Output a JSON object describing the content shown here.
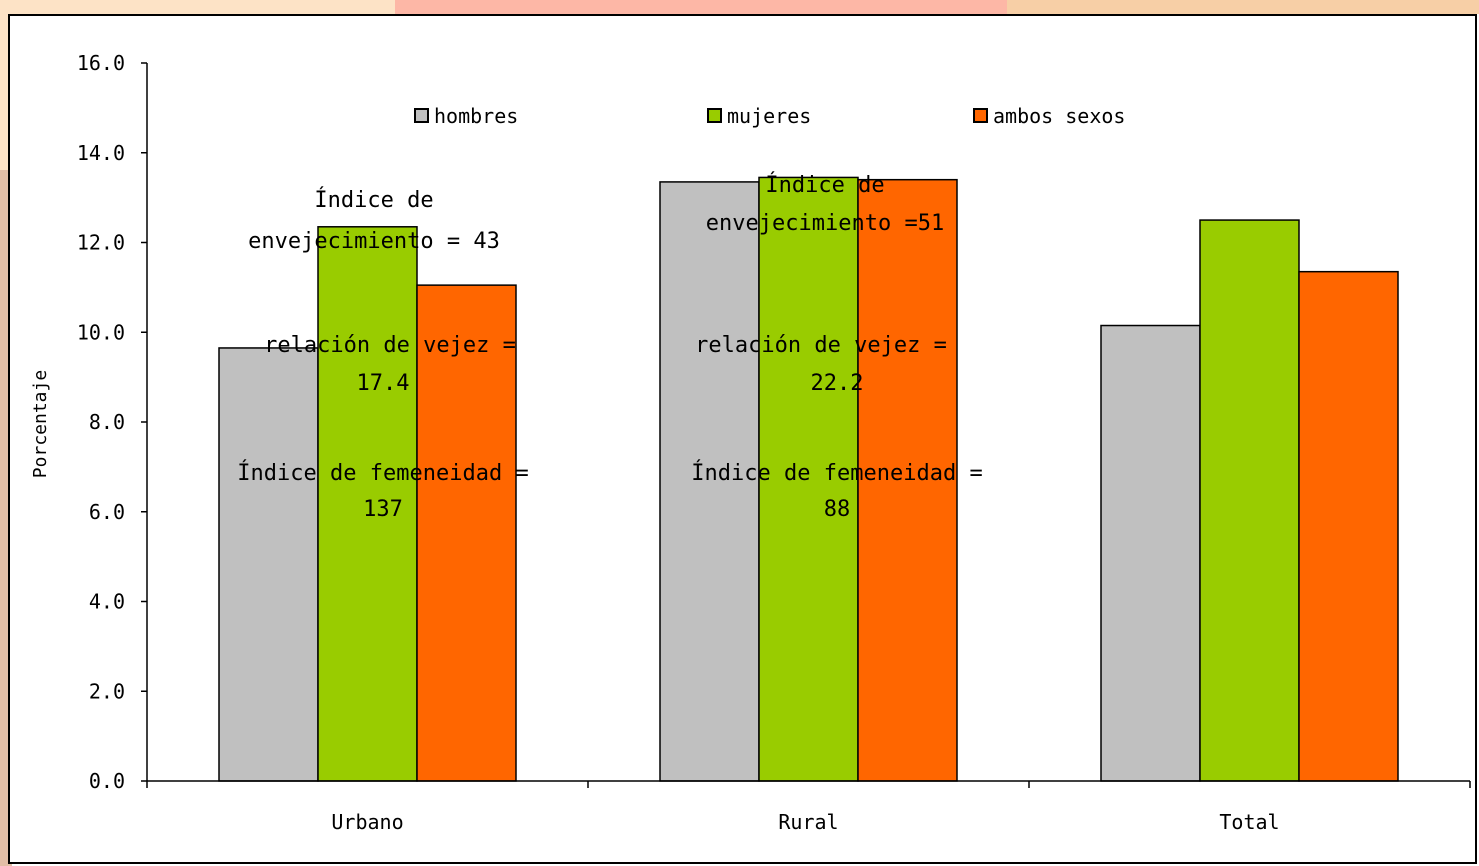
{
  "chart_data": {
    "type": "bar",
    "title": "",
    "xlabel": "",
    "ylabel": "Porcentaje",
    "ylim": [
      0,
      16
    ],
    "yticks": [
      "0.0",
      "2.0",
      "4.0",
      "6.0",
      "8.0",
      "10.0",
      "12.0",
      "14.0",
      "16.0"
    ],
    "categories": [
      "Urbano",
      "Rural",
      "Total"
    ],
    "series": [
      {
        "name": "hombres",
        "color": "#c0c0c0",
        "values": [
          9.65,
          13.35,
          10.15
        ]
      },
      {
        "name": "mujeres",
        "color": "#99cc00",
        "values": [
          12.35,
          13.45,
          12.5
        ]
      },
      {
        "name": "ambos sexos",
        "color": "#ff6600",
        "values": [
          11.05,
          13.4,
          11.35
        ]
      }
    ],
    "legend_position": "top",
    "grid": false,
    "annotations": {
      "urbano": {
        "envejecimiento": [
          "Índice de",
          "envejecimiento = 43"
        ],
        "vejez": [
          "relación de vejez =",
          "17.4"
        ],
        "femineidad": [
          "Índice de femeneidad =",
          "137"
        ]
      },
      "rural": {
        "envejecimiento": [
          "Índice de",
          "envejecimiento =51"
        ],
        "vejez": [
          "relación de vejez =",
          "22.2"
        ],
        "femineidad": [
          "Índice de femeneidad =",
          "88"
        ]
      }
    }
  }
}
